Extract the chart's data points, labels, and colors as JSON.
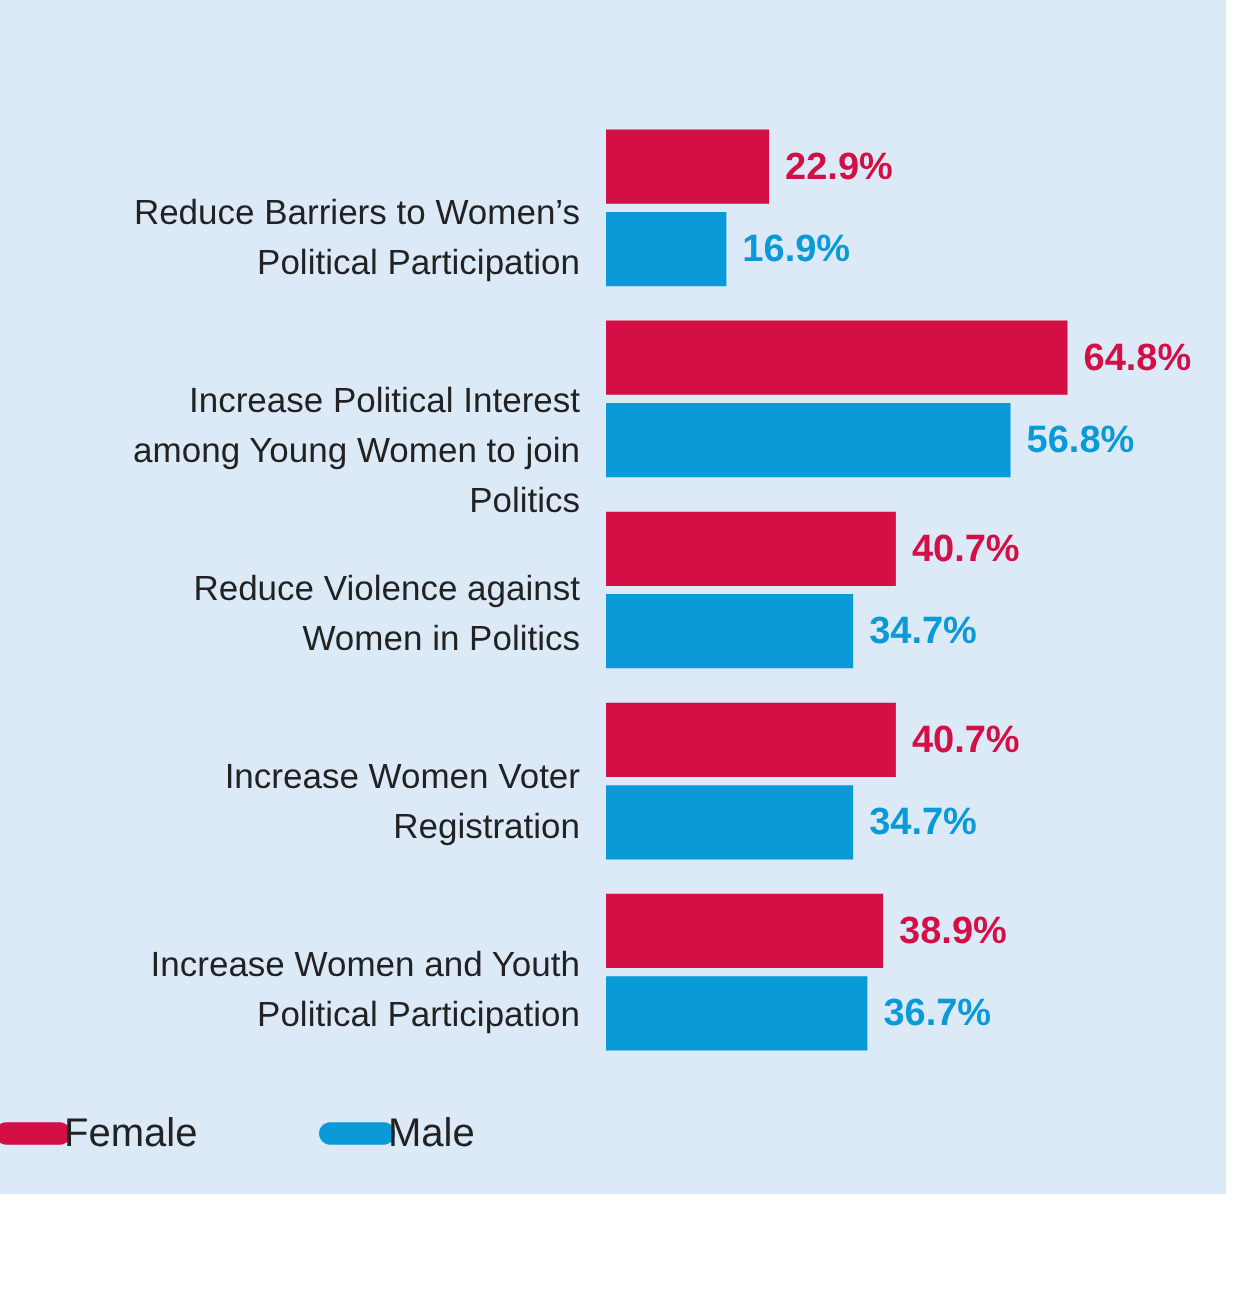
{
  "chart_data": {
    "type": "bar",
    "orientation": "horizontal",
    "categories": [
      "Reduce Barriers to Women’s Political Participation",
      "Increase Political Interest among Young Women to join Politics",
      "Reduce Violence against Women in Politics",
      "Increase Women Voter Registration",
      "Increase Women and Youth Political Participation"
    ],
    "series": [
      {
        "name": "Female",
        "color": "#d40f46",
        "values": [
          22.9,
          64.8,
          40.7,
          40.7,
          38.9
        ],
        "value_labels": [
          "22.9%",
          "64.8%",
          "40.7%",
          "40.7%",
          "38.9%"
        ]
      },
      {
        "name": "Male",
        "color": "#0a9ad8",
        "values": [
          16.9,
          56.8,
          34.7,
          34.7,
          36.7
        ],
        "value_labels": [
          "16.9%",
          "56.8%",
          "34.7%",
          "34.7%",
          "36.7%"
        ]
      }
    ],
    "legend": "bottom"
  }
}
